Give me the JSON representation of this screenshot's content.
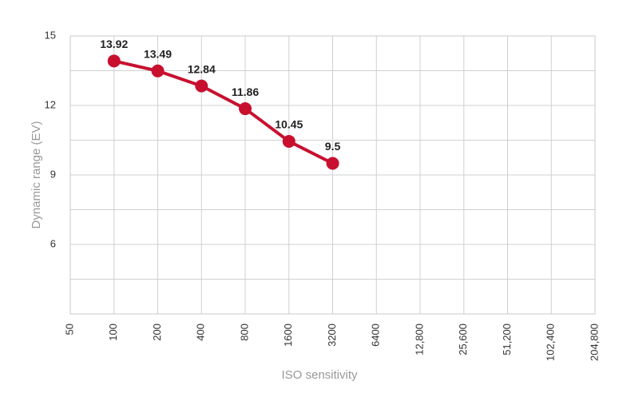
{
  "chart_data": {
    "type": "line",
    "x_label": "ISO sensitivity",
    "y_label": "Dynamic range (EV)",
    "categories": [
      "50",
      "100",
      "200",
      "400",
      "800",
      "1600",
      "3200",
      "6400",
      "12,800",
      "25,600",
      "51,200",
      "102,400",
      "204,800"
    ],
    "series": [
      {
        "name": "Dynamic range",
        "color": "#c8102e",
        "values": [
          null,
          13.92,
          13.49,
          12.84,
          11.86,
          10.45,
          9.5,
          null,
          null,
          null,
          null,
          null,
          null
        ]
      }
    ],
    "ylim": [
      3,
      15
    ],
    "yticks": [
      6,
      9,
      12,
      15
    ],
    "y_minor_ticks": [
      4.5,
      7.5,
      10.5,
      13.5
    ],
    "grid": true
  }
}
